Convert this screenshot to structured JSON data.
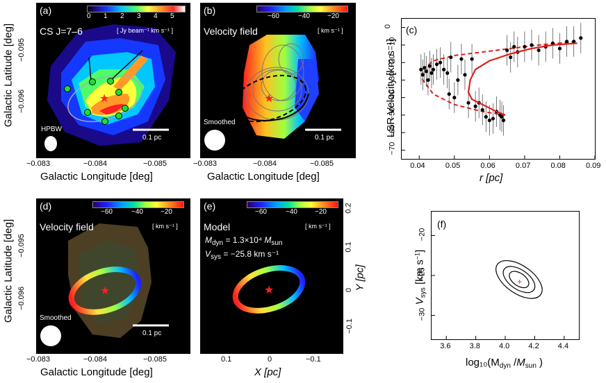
{
  "panels": {
    "a": {
      "label": "(a)",
      "line": "CS J=7–6",
      "cbar_ticks": [
        "0",
        "1",
        "2",
        "3",
        "4",
        "5"
      ],
      "unit": "[ Jy beam⁻¹ km s⁻¹ ]",
      "beam": "HPBW",
      "scale": "0.1 pc"
    },
    "b": {
      "label": "(b)",
      "line": "Velocity field",
      "cbar_ticks": [
        "−60",
        "−40",
        "−20"
      ],
      "unit": "[ km s⁻¹ ]",
      "beam": "Smoothed",
      "scale": "0.1 pc"
    },
    "d": {
      "label": "(d)",
      "line": "Velocity field",
      "cbar_ticks": [
        "−60",
        "−40",
        "−20"
      ],
      "unit": "[ km s⁻¹ ]",
      "beam": "Smoothed",
      "scale": "0.1 pc"
    },
    "e": {
      "label": "(e)",
      "line": "Model",
      "cbar_ticks": [
        "−60",
        "−40",
        "−20"
      ],
      "unit": "[ km s⁻¹ ]",
      "mdyn_val": "= 1.3×10⁴",
      "vsys_val": "= −25.8 km s⁻¹"
    },
    "c": {
      "label": "(c)"
    },
    "f": {
      "label": "(f)"
    }
  },
  "axes": {
    "glat": "Galactic Latitude  [deg]",
    "glon": "Galactic Longitude  [deg]",
    "glat_ticks": [
      "−0.095",
      "−0.096"
    ],
    "glon_ticks": [
      "−0.083",
      "−0.084",
      "−0.085"
    ],
    "x_pc_ticks": [
      "0.1",
      "0",
      "−0.1"
    ],
    "y_pc_ticks": [
      "0.2",
      "0.1",
      "0",
      "−0.1"
    ],
    "x_pc_label": "X  [pc]",
    "y_pc_label": "Y  [pc]",
    "c_xlabel": "r  [pc]",
    "c_ylabel": "LSR Velocity  [km s⁻¹]",
    "f_ylabel": "V",
    "f_xlabel": "log₁₀(M"
  },
  "chart_data": [
    {
      "type": "scatter",
      "panel": "c",
      "xlabel": "r  [pc]",
      "ylabel": "LSR Velocity  [km s⁻¹]",
      "xlim": [
        0.035,
        0.09
      ],
      "ylim": [
        -75,
        5
      ],
      "xticks": [
        0.04,
        0.05,
        0.06,
        0.07,
        0.08,
        0.09
      ],
      "yticks": [
        0,
        -10,
        -20,
        -30,
        -40,
        -50,
        -60,
        -70
      ],
      "points": [
        [
          0.0405,
          -24
        ],
        [
          0.041,
          -27
        ],
        [
          0.0415,
          -23
        ],
        [
          0.042,
          -25
        ],
        [
          0.0425,
          -30
        ],
        [
          0.043,
          -22
        ],
        [
          0.0435,
          -26
        ],
        [
          0.044,
          -24
        ],
        [
          0.045,
          -21
        ],
        [
          0.046,
          -20
        ],
        [
          0.047,
          -24
        ],
        [
          0.048,
          -26
        ],
        [
          0.0485,
          -38
        ],
        [
          0.049,
          -17
        ],
        [
          0.05,
          -40
        ],
        [
          0.051,
          -30
        ],
        [
          0.052,
          -18
        ],
        [
          0.053,
          -27
        ],
        [
          0.054,
          -43
        ],
        [
          0.055,
          -18
        ],
        [
          0.056,
          -45
        ],
        [
          0.057,
          -43
        ],
        [
          0.058,
          -47
        ],
        [
          0.059,
          -51
        ],
        [
          0.06,
          -53
        ],
        [
          0.061,
          -52
        ],
        [
          0.062,
          -48
        ],
        [
          0.063,
          -50
        ],
        [
          0.0635,
          -51
        ],
        [
          0.064,
          -53
        ],
        [
          0.065,
          -13
        ],
        [
          0.066,
          -17
        ],
        [
          0.067,
          -11
        ],
        [
          0.068,
          -14
        ],
        [
          0.07,
          -11
        ],
        [
          0.072,
          -10
        ],
        [
          0.074,
          -13
        ],
        [
          0.076,
          -11
        ],
        [
          0.078,
          -9
        ],
        [
          0.08,
          -12
        ],
        [
          0.082,
          -8
        ],
        [
          0.084,
          -8
        ],
        [
          0.086,
          -6
        ]
      ],
      "model_line": [
        [
          0.0645,
          -50
        ],
        [
          0.062,
          -48
        ],
        [
          0.058,
          -44
        ],
        [
          0.055,
          -41
        ],
        [
          0.054,
          -37
        ],
        [
          0.0545,
          -30
        ],
        [
          0.056,
          -24
        ],
        [
          0.06,
          -19
        ],
        [
          0.066,
          -15
        ],
        [
          0.072,
          -12
        ],
        [
          0.078,
          -10
        ],
        [
          0.085,
          -9
        ]
      ],
      "envelope_line": [
        [
          0.0645,
          -50
        ],
        [
          0.058,
          -48
        ],
        [
          0.05,
          -44
        ],
        [
          0.044,
          -38
        ],
        [
          0.041,
          -30
        ],
        [
          0.041,
          -24
        ],
        [
          0.044,
          -19
        ],
        [
          0.05,
          -16
        ],
        [
          0.058,
          -14
        ],
        [
          0.066,
          -12
        ],
        [
          0.074,
          -10
        ],
        [
          0.085,
          -8
        ]
      ]
    },
    {
      "type": "contour",
      "panel": "f",
      "xlim": [
        3.5,
        4.5
      ],
      "ylim": [
        -33,
        -17
      ],
      "xticks": [
        3.6,
        3.8,
        4.0,
        4.2,
        4.4
      ],
      "yticks": [
        -20,
        -25,
        -30
      ],
      "best_fit": [
        4.1,
        -25.8
      ]
    }
  ],
  "colors": {
    "model": "#e11b1b",
    "star": "#ff2020",
    "dot": "#22dd33"
  }
}
